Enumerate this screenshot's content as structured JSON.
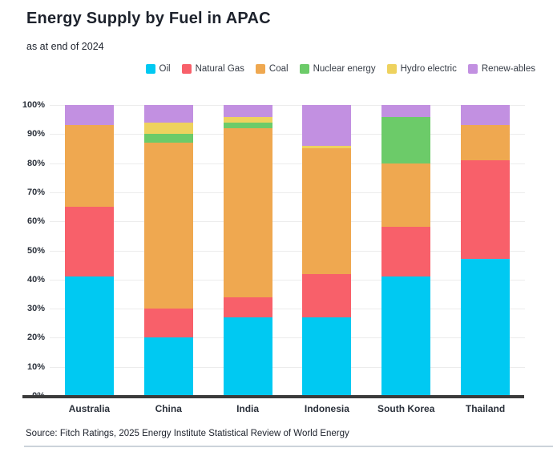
{
  "header": {
    "title": "Energy Supply by Fuel in APAC",
    "subtitle": "as at end of 2024"
  },
  "footer": {
    "source": "Source: Fitch Ratings, 2025 Energy Institute Statistical Review of World Energy"
  },
  "colors": {
    "oil": "#00C9F2",
    "natural_gas": "#F8606A",
    "coal": "#EFA850",
    "nuclear": "#6CCB69",
    "hydro": "#EED25E",
    "renewables": "#C290E1",
    "axis_line": "#3b3b3b",
    "gridline": "#ececec",
    "text_dark": "#1d222c"
  },
  "chart_data": {
    "type": "bar",
    "stacked": true,
    "unit": "percent",
    "title": "Energy Supply by Fuel in APAC",
    "subtitle": "as at end of 2024",
    "categories": [
      "Australia",
      "China",
      "India",
      "Indonesia",
      "South Korea",
      "Thailand"
    ],
    "series": [
      {
        "name": "Oil",
        "color": "#00C9F2",
        "values": [
          41,
          20,
          27,
          27,
          41,
          47
        ]
      },
      {
        "name": "Natural Gas",
        "color": "#F8606A",
        "values": [
          24,
          10,
          7,
          15,
          17,
          34
        ]
      },
      {
        "name": "Coal",
        "color": "#EFA850",
        "values": [
          28,
          57,
          58,
          43,
          22,
          12
        ]
      },
      {
        "name": "Nuclear energy",
        "color": "#6CCB69",
        "values": [
          0,
          3,
          2,
          0,
          16,
          0
        ]
      },
      {
        "name": "Hydro electric",
        "color": "#EED25E",
        "values": [
          0,
          4,
          2,
          1,
          0,
          0
        ]
      },
      {
        "name": "Renew-ables",
        "color": "#C290E1",
        "values": [
          7,
          6,
          4,
          14,
          4,
          7
        ]
      }
    ],
    "y_ticks": [
      "100%",
      "90%",
      "80%",
      "70%",
      "60%",
      "50%",
      "40%",
      "30%",
      "20%",
      "10%",
      "0%"
    ],
    "ylim": [
      0,
      100
    ],
    "grid": true,
    "legend_position": "top-right"
  }
}
